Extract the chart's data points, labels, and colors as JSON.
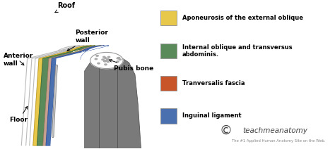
{
  "background_color": "#ffffff",
  "legend_items": [
    {
      "label": "Aponeurosis of the external oblique",
      "color": "#e8c84a"
    },
    {
      "label": "Internal oblique and transversus\nabdominis.",
      "color": "#5a8a5a"
    },
    {
      "label": "Tranversalis fascia",
      "color": "#c8542a"
    },
    {
      "label": "Inguinal ligament",
      "color": "#4a70b0"
    }
  ],
  "watermark_text": "teachmeanatomy",
  "watermark_sub": "The #1 Applied Human Anatomy Site on the Web.",
  "fig_width": 4.74,
  "fig_height": 2.12
}
